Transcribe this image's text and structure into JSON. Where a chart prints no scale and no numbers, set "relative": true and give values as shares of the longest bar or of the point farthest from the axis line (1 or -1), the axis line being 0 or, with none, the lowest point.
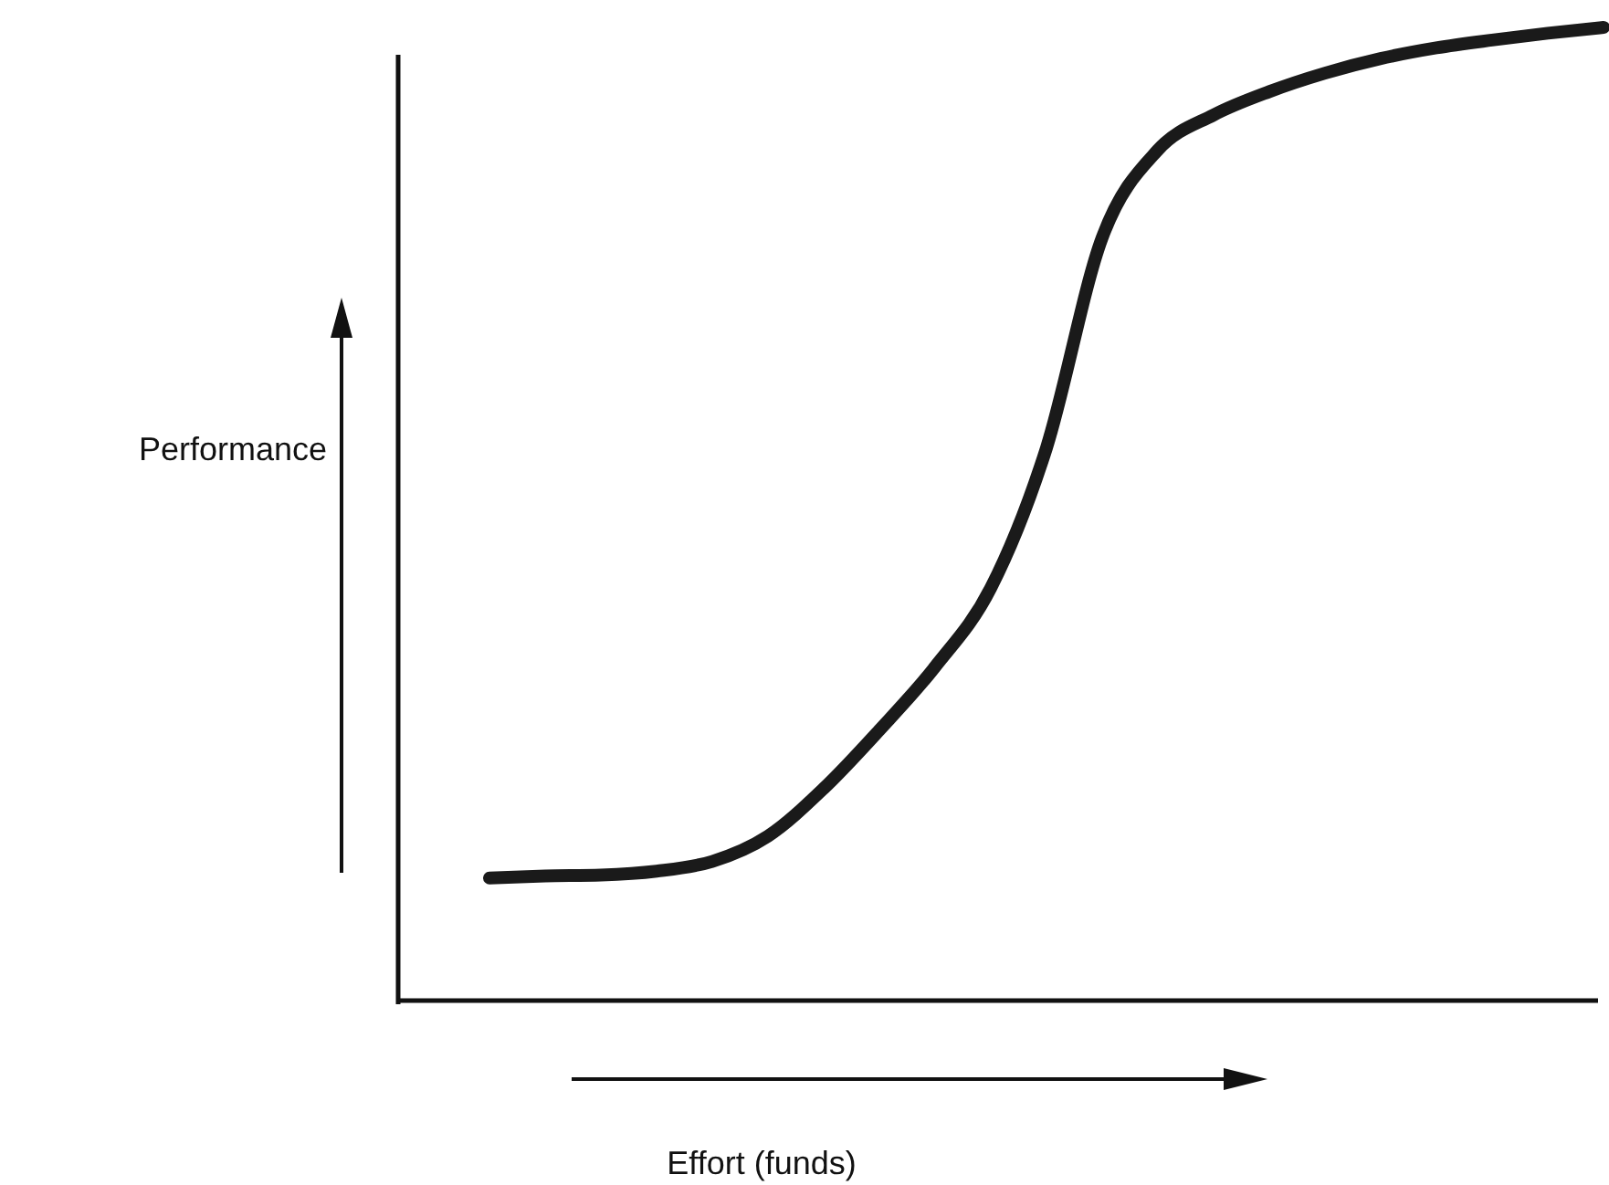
{
  "chart_data": {
    "type": "line",
    "relative": true,
    "xlabel": "Effort (funds)",
    "ylabel": "Performance",
    "categories": [
      null,
      null,
      null,
      null,
      null,
      null,
      null,
      null,
      null,
      null,
      null,
      null,
      null,
      null,
      null,
      null,
      null,
      null,
      null,
      null,
      null
    ],
    "series": [
      {
        "color": "#1a1a1a",
        "values": [
          0.126,
          0.128,
          0.129,
          0.133,
          0.143,
          0.169,
          0.218,
          0.278,
          0.343,
          0.424,
          0.568,
          0.784,
          0.874,
          0.91,
          0.934,
          0.953,
          0.968,
          0.979,
          0.987,
          0.994,
          1
        ]
      }
    ],
    "marker": "none",
    "line_style": "solid"
  }
}
